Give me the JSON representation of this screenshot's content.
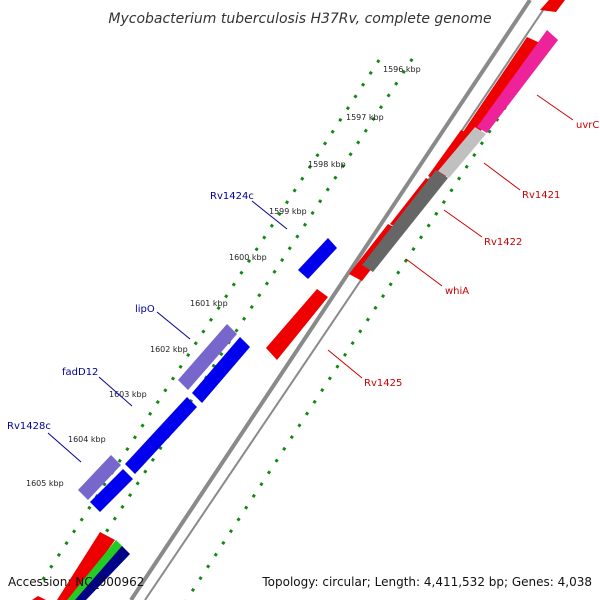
{
  "title": "Mycobacterium tuberculosis H37Rv, complete genome",
  "accession": "Accession: NC_000962",
  "topology": "Topology: circular; Length: 4,411,532 bp; Genes: 4,038",
  "colors": {
    "backbone": "#8a8a8a",
    "dotted_track": "#118811",
    "forward_gene": "#ee0000",
    "reverse_gene": "#0000ee",
    "reverse_gene_light": "#7766cc",
    "pink_gene": "#ee2299",
    "light_gray_gene": "#c0c0c0",
    "dark_gray_gene": "#666666",
    "green_gene": "#22cc22",
    "navy_gene": "#000088",
    "forward_label": "#cc0000",
    "reverse_label": "#000099"
  },
  "ticks": [
    {
      "label": "1596 kbp"
    },
    {
      "label": "1597 kbp"
    },
    {
      "label": "1598 kbp"
    },
    {
      "label": "1599 kbp"
    },
    {
      "label": "1600 kbp"
    },
    {
      "label": "1601 kbp"
    },
    {
      "label": "1602 kbp"
    },
    {
      "label": "1603 kbp"
    },
    {
      "label": "1604 kbp"
    },
    {
      "label": "1605 kbp"
    }
  ],
  "forward_gene_labels": [
    "uvrC",
    "Rv1421",
    "Rv1422",
    "whiA",
    "Rv1425"
  ],
  "reverse_gene_labels": [
    "Rv1424c",
    "lipO",
    "fadD12",
    "Rv1428c"
  ]
}
